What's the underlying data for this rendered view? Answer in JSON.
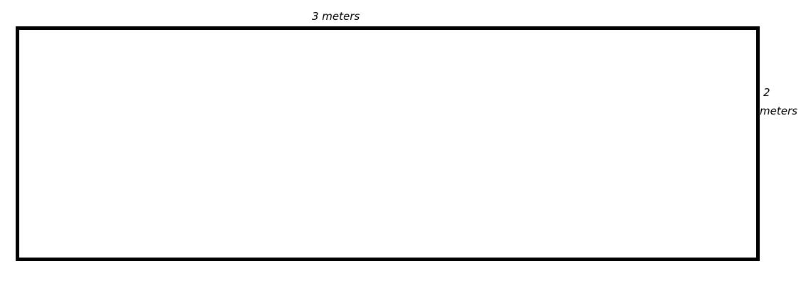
{
  "diagram": {
    "shape": "rectangle",
    "border_color": "#000000",
    "background_color": "#ffffff",
    "width_label": "3 meters",
    "height_label_line1": "2",
    "height_label_line2": "meters"
  }
}
